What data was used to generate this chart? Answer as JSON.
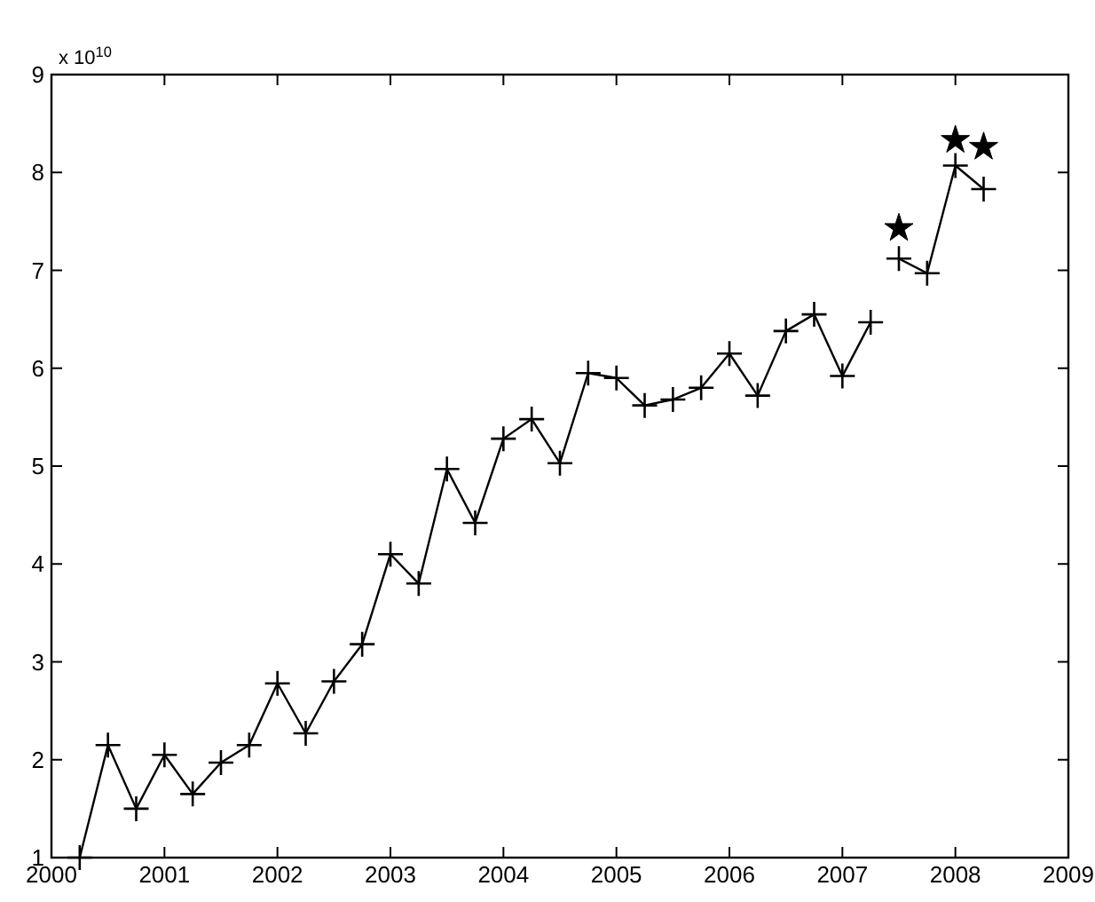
{
  "chart_data": {
    "type": "line",
    "annotations": [
      "x 10$^{10}$"
    ],
    "xlim": [
      2000,
      2009
    ],
    "xticks": [
      2000,
      2001,
      2002,
      2003,
      2004,
      2005,
      2006,
      2007,
      2008,
      2009
    ],
    "ylim": [
      1,
      9
    ],
    "yticks": [
      1,
      2,
      3,
      4,
      5,
      6,
      7,
      8,
      9
    ],
    "grid": false,
    "series": [
      {
        "color": "#000000",
        "marker": "cross",
        "line_style": "solid",
        "x": [
          2000.25,
          2000.5,
          2000.75,
          2001,
          2001.25,
          2001.5,
          2001.75,
          2002,
          2002.25,
          2002.5,
          2002.75,
          2003,
          2003.25,
          2003.5,
          2003.75,
          2004,
          2004.25,
          2004.5,
          2004.75,
          2005,
          2005.25,
          2005.5,
          2005.75,
          2006,
          2006.25,
          2006.5,
          2006.75,
          2007,
          2007.25,
          2007.375,
          2007.5,
          2007.75,
          2008,
          2008.25
        ],
        "values": [
          1.0,
          2.15,
          1.5,
          2.05,
          1.65,
          1.97,
          2.15,
          2.78,
          2.27,
          2.8,
          3.18,
          4.1,
          3.8,
          4.97,
          4.42,
          5.28,
          5.48,
          5.03,
          5.95,
          5.9,
          5.62,
          5.68,
          5.8,
          6.15,
          5.72,
          6.38,
          6.55,
          5.92,
          6.47,
          null,
          7.12,
          6.97,
          8.07,
          7.83
        ]
      },
      {
        "type": "scatter",
        "color": "#000000",
        "marker": "star",
        "x": [
          2007.5,
          2008,
          2008.25
        ],
        "values": [
          7.43,
          8.33,
          8.26
        ]
      }
    ]
  }
}
